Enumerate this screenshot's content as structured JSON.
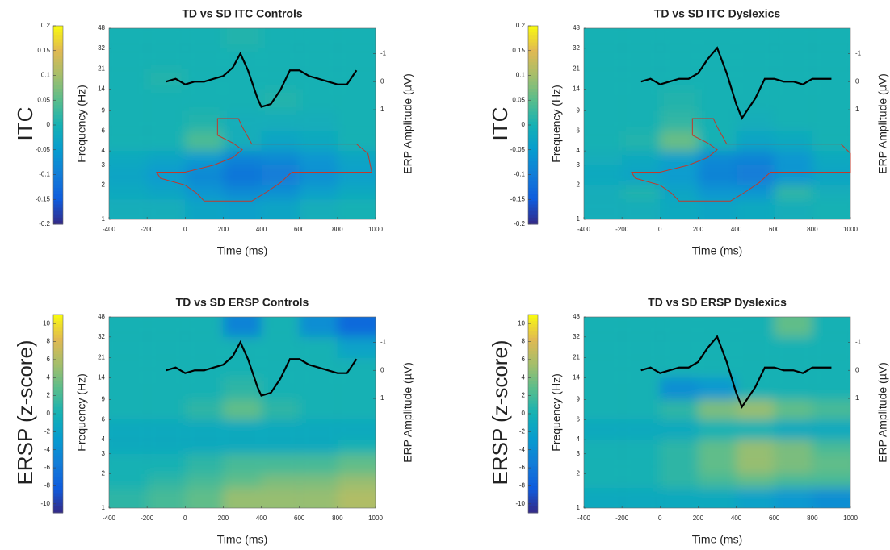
{
  "chart_data": [
    {
      "type": "heatmap",
      "title": "TD vs SD ITC Controls",
      "side_label": "ITC",
      "xlabel": "Time (ms)",
      "ylabel": "Frequency (Hz)",
      "y2label": "ERP Amplitude (µV)",
      "xlim": [
        -400,
        1000
      ],
      "xticks": [
        -400,
        -200,
        0,
        200,
        400,
        600,
        800,
        1000
      ],
      "ylim": [
        1,
        48
      ],
      "yticks": [
        1,
        2,
        3,
        4,
        6,
        9,
        14,
        21,
        32,
        48
      ],
      "log_y": true,
      "y2lim": [
        4.9,
        -1.9
      ],
      "y2ticks": [
        -1,
        0,
        1
      ],
      "colormap": "parula",
      "clim": [
        -0.2,
        0.2
      ],
      "cticks": [
        -0.2,
        -0.15,
        -0.1,
        -0.05,
        0,
        0.05,
        0.1,
        0.15,
        0.2
      ],
      "time_edges": [
        -400,
        -200,
        0,
        200,
        400,
        600,
        800,
        1000
      ],
      "freq_edges": [
        1,
        1.5,
        2,
        3,
        4,
        6,
        9,
        14,
        21,
        32,
        48
      ],
      "z": [
        [
          -0.01,
          -0.01,
          -0.03,
          -0.04,
          -0.03,
          -0.01,
          0
        ],
        [
          -0.02,
          -0.03,
          -0.06,
          -0.08,
          -0.07,
          -0.04,
          -0.02
        ],
        [
          -0.03,
          -0.05,
          -0.08,
          -0.11,
          -0.1,
          -0.07,
          -0.04
        ],
        [
          -0.02,
          -0.03,
          -0.05,
          -0.09,
          -0.08,
          -0.06,
          -0.03
        ],
        [
          0,
          0,
          0.04,
          -0.01,
          -0.03,
          -0.02,
          0
        ],
        [
          0,
          0,
          0.01,
          -0.01,
          -0.01,
          -0.01,
          0
        ],
        [
          0,
          0,
          0,
          0,
          0.01,
          0,
          0
        ],
        [
          0,
          0.01,
          0,
          0,
          0,
          0,
          0
        ],
        [
          0,
          0,
          0,
          0,
          0,
          0,
          0
        ],
        [
          0,
          0,
          0,
          0.01,
          0,
          0,
          0
        ]
      ],
      "series": [
        {
          "color": "#000000",
          "axis": "y2",
          "x": [
            -100,
            -50,
            0,
            50,
            100,
            150,
            200,
            250,
            290,
            330,
            380,
            400,
            450,
            500,
            550,
            600,
            650,
            700,
            750,
            800,
            850,
            900
          ],
          "values": [
            0,
            -0.1,
            0.1,
            0,
            0,
            -0.1,
            -0.2,
            -0.5,
            -1.0,
            -0.4,
            0.6,
            0.9,
            0.8,
            0.3,
            -0.4,
            -0.4,
            -0.2,
            -0.1,
            0,
            0.1,
            0.1,
            -0.4
          ]
        }
      ],
      "contour": {
        "color": "#c0392b",
        "x": [
          170,
          280,
          300,
          330,
          350,
          450,
          900,
          960,
          980,
          900,
          560,
          500,
          430,
          350,
          100,
          60,
          0,
          -130,
          -150,
          0,
          150,
          250,
          300,
          250,
          170
        ],
        "y": [
          7.7,
          7.7,
          6.5,
          5.3,
          4.6,
          4.6,
          4.6,
          3.8,
          2.6,
          2.6,
          2.6,
          2.1,
          1.75,
          1.45,
          1.45,
          1.7,
          2.0,
          2.3,
          2.6,
          2.6,
          3.0,
          3.5,
          4.1,
          4.7,
          5.5
        ]
      }
    },
    {
      "type": "heatmap",
      "title": "TD vs SD ITC Dyslexics",
      "side_label": "ITC",
      "xlabel": "Time (ms)",
      "ylabel": "Frequency (Hz)",
      "y2label": "ERP Amplitude (µV)",
      "xlim": [
        -400,
        1000
      ],
      "xticks": [
        -400,
        -200,
        0,
        200,
        400,
        600,
        800,
        1000
      ],
      "ylim": [
        1,
        48
      ],
      "yticks": [
        1,
        2,
        3,
        4,
        6,
        9,
        14,
        21,
        32,
        48
      ],
      "log_y": true,
      "y2lim": [
        4.9,
        -1.9
      ],
      "y2ticks": [
        -1,
        0,
        1
      ],
      "colormap": "parula",
      "clim": [
        -0.2,
        0.2
      ],
      "cticks": [
        -0.2,
        -0.15,
        -0.1,
        -0.05,
        0,
        0.05,
        0.1,
        0.15,
        0.2
      ],
      "time_edges": [
        -400,
        -200,
        0,
        200,
        400,
        600,
        800,
        1000
      ],
      "freq_edges": [
        1,
        1.5,
        2,
        3,
        4,
        6,
        9,
        14,
        21,
        32,
        48
      ],
      "z": [
        [
          -0.01,
          -0.01,
          -0.02,
          -0.03,
          -0.02,
          -0.01,
          0
        ],
        [
          -0.01,
          0.01,
          -0.03,
          -0.06,
          -0.06,
          0.02,
          -0.01
        ],
        [
          -0.02,
          -0.03,
          -0.05,
          -0.09,
          -0.1,
          -0.06,
          -0.03
        ],
        [
          -0.01,
          -0.02,
          -0.04,
          -0.08,
          -0.09,
          -0.06,
          -0.02
        ],
        [
          0,
          0.01,
          0.06,
          0,
          -0.03,
          -0.02,
          0
        ],
        [
          0,
          0,
          0.02,
          0,
          -0.01,
          0,
          0
        ],
        [
          0,
          0,
          0.01,
          0,
          0,
          0,
          0
        ],
        [
          0,
          0,
          0,
          0,
          0,
          0,
          0
        ],
        [
          0,
          0,
          0,
          0,
          0,
          0,
          0
        ],
        [
          0,
          0,
          0,
          0,
          0,
          0,
          0
        ]
      ],
      "series": [
        {
          "color": "#000000",
          "axis": "y2",
          "x": [
            -100,
            -50,
            0,
            50,
            100,
            150,
            200,
            250,
            300,
            350,
            400,
            430,
            500,
            550,
            600,
            650,
            700,
            750,
            800,
            850,
            900
          ],
          "values": [
            0,
            -0.1,
            0.1,
            0,
            -0.1,
            -0.1,
            -0.3,
            -0.8,
            -1.2,
            -0.3,
            0.8,
            1.3,
            0.6,
            -0.1,
            -0.1,
            0,
            0,
            0.1,
            -0.1,
            -0.1,
            -0.1
          ]
        }
      ],
      "contour": {
        "color": "#c0392b",
        "x": [
          170,
          280,
          300,
          330,
          350,
          450,
          950,
          1000,
          1000,
          920,
          580,
          520,
          450,
          370,
          100,
          60,
          0,
          -130,
          -150,
          0,
          150,
          250,
          300,
          250,
          170
        ],
        "y": [
          7.7,
          7.7,
          6.5,
          5.3,
          4.6,
          4.6,
          4.6,
          3.8,
          2.6,
          2.6,
          2.6,
          2.1,
          1.75,
          1.45,
          1.45,
          1.7,
          2.0,
          2.3,
          2.6,
          2.6,
          3.0,
          3.5,
          4.1,
          4.7,
          5.5
        ]
      }
    },
    {
      "type": "heatmap",
      "title": "TD vs SD ERSP Controls",
      "side_label": "ERSP (z-score)",
      "xlabel": "Time (ms)",
      "ylabel": "Frequency (Hz)",
      "y2label": "ERP Amplitude (µV)",
      "xlim": [
        -400,
        1000
      ],
      "xticks": [
        -400,
        -200,
        0,
        200,
        400,
        600,
        800,
        1000
      ],
      "ylim": [
        1,
        48
      ],
      "yticks": [
        1,
        2,
        3,
        4,
        6,
        9,
        14,
        21,
        32,
        48
      ],
      "log_y": true,
      "y2lim": [
        4.9,
        -1.9
      ],
      "y2ticks": [
        -1,
        0,
        1
      ],
      "colormap": "parula",
      "clim": [
        -11,
        11
      ],
      "cticks": [
        -10,
        -8,
        -6,
        -4,
        -2,
        0,
        2,
        4,
        6,
        8,
        10
      ],
      "time_edges": [
        -400,
        -200,
        0,
        200,
        400,
        600,
        800,
        1000
      ],
      "freq_edges": [
        1,
        1.5,
        2,
        3,
        4,
        6,
        9,
        14,
        21,
        32,
        48
      ],
      "z": [
        [
          1,
          2,
          3,
          5,
          5,
          5,
          6
        ],
        [
          0,
          1,
          2,
          3,
          4,
          4,
          5
        ],
        [
          0,
          0,
          1,
          2,
          2,
          2,
          3
        ],
        [
          -1,
          -1,
          -1,
          -1,
          -1,
          -1,
          0
        ],
        [
          -1,
          -1,
          -1,
          -1,
          -1,
          -1,
          -1
        ],
        [
          0,
          0,
          1,
          3,
          1,
          0,
          0
        ],
        [
          0,
          0,
          0,
          1,
          0,
          0,
          0
        ],
        [
          0,
          0,
          0,
          0,
          0,
          0,
          0
        ],
        [
          0,
          0,
          0,
          0,
          0,
          0,
          -2
        ],
        [
          0,
          0,
          0,
          -5,
          0,
          -4,
          -7
        ]
      ],
      "series": [
        {
          "color": "#000000",
          "axis": "y2",
          "x": [
            -100,
            -50,
            0,
            50,
            100,
            150,
            200,
            250,
            290,
            330,
            380,
            400,
            450,
            500,
            550,
            600,
            650,
            700,
            750,
            800,
            850,
            900
          ],
          "values": [
            0,
            -0.1,
            0.1,
            0,
            0,
            -0.1,
            -0.2,
            -0.5,
            -1.0,
            -0.4,
            0.6,
            0.9,
            0.8,
            0.3,
            -0.4,
            -0.4,
            -0.2,
            -0.1,
            0,
            0.1,
            0.1,
            -0.4
          ]
        }
      ]
    },
    {
      "type": "heatmap",
      "title": "TD vs SD ERSP Dyslexics",
      "side_label": "ERSP (z-score)",
      "xlabel": "Time (ms)",
      "ylabel": "Frequency (Hz)",
      "y2label": "ERP Amplitude (µV)",
      "xlim": [
        -400,
        1000
      ],
      "xticks": [
        -400,
        -200,
        0,
        200,
        400,
        600,
        800,
        1000
      ],
      "ylim": [
        1,
        48
      ],
      "yticks": [
        1,
        2,
        3,
        4,
        6,
        9,
        14,
        21,
        32,
        48
      ],
      "log_y": true,
      "y2lim": [
        4.9,
        -1.9
      ],
      "y2ticks": [
        -1,
        0,
        1
      ],
      "colormap": "parula",
      "clim": [
        -11,
        11
      ],
      "cticks": [
        -10,
        -8,
        -6,
        -4,
        -2,
        0,
        2,
        4,
        6,
        8,
        10
      ],
      "time_edges": [
        -400,
        -200,
        0,
        200,
        400,
        600,
        800,
        1000
      ],
      "freq_edges": [
        1,
        1.5,
        2,
        3,
        4,
        6,
        9,
        14,
        21,
        32,
        48
      ],
      "z": [
        [
          -1,
          -1,
          -1,
          -1,
          -2,
          -3,
          -4
        ],
        [
          0,
          0,
          1,
          2,
          3,
          2,
          2
        ],
        [
          0,
          0,
          1,
          3,
          5,
          4,
          3
        ],
        [
          0,
          0,
          1,
          3,
          5,
          4,
          2
        ],
        [
          -1,
          -1,
          -1,
          0,
          0,
          -1,
          -1
        ],
        [
          0,
          0,
          1,
          4,
          5,
          3,
          2
        ],
        [
          0,
          0,
          -4,
          -3,
          0,
          0,
          0
        ],
        [
          0,
          0,
          0,
          0,
          0,
          0,
          0
        ],
        [
          0,
          0,
          0,
          0,
          0,
          0,
          0
        ],
        [
          0,
          0,
          0,
          0,
          0,
          3,
          0
        ]
      ],
      "series": [
        {
          "color": "#000000",
          "axis": "y2",
          "x": [
            -100,
            -50,
            0,
            50,
            100,
            150,
            200,
            250,
            300,
            350,
            400,
            430,
            500,
            550,
            600,
            650,
            700,
            750,
            800,
            850,
            900
          ],
          "values": [
            0,
            -0.1,
            0.1,
            0,
            -0.1,
            -0.1,
            -0.3,
            -0.8,
            -1.2,
            -0.3,
            0.8,
            1.3,
            0.6,
            -0.1,
            -0.1,
            0,
            0,
            0.1,
            -0.1,
            -0.1,
            -0.1
          ]
        }
      ]
    }
  ]
}
